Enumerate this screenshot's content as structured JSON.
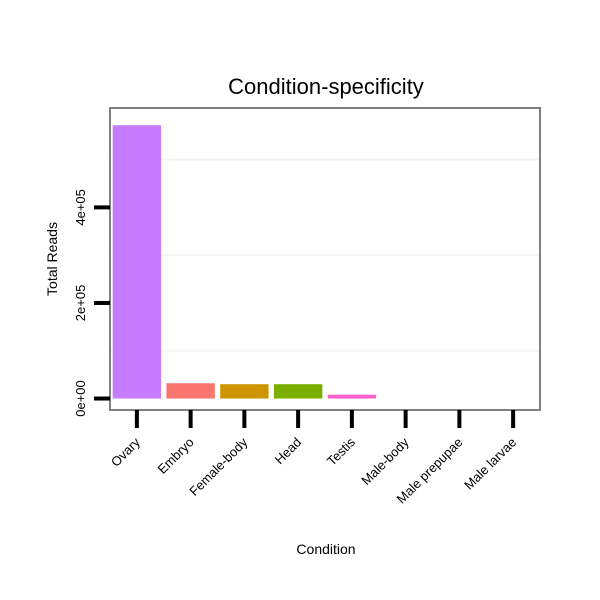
{
  "chart_data": {
    "type": "bar",
    "title": "Condition-specificity",
    "xlabel": "Condition",
    "ylabel": "Total Reads",
    "categories": [
      "Ovary",
      "Embryo",
      "Female-body",
      "Head",
      "Testis",
      "Male-body",
      "Male prepupae",
      "Male larvae"
    ],
    "values": [
      572000,
      32000,
      30000,
      30000,
      8000,
      0,
      0,
      0
    ],
    "colors": [
      "#c77cff",
      "#f8766d",
      "#cd9600",
      "#7cae00",
      "#ff61cc",
      "#00bfc4",
      "#00a9ff",
      "#00be67"
    ],
    "ylim": [
      -24000,
      608000
    ],
    "yticks": [
      0,
      200000,
      400000
    ],
    "ytick_labels": [
      "0e+00",
      "2e+05",
      "4e+05"
    ],
    "grid": true
  }
}
